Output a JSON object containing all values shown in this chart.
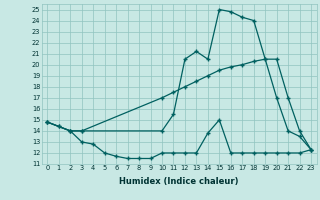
{
  "xlabel": "Humidex (Indice chaleur)",
  "xlim": [
    -0.5,
    23.5
  ],
  "ylim": [
    11,
    25.5
  ],
  "yticks": [
    11,
    12,
    13,
    14,
    15,
    16,
    17,
    18,
    19,
    20,
    21,
    22,
    23,
    24,
    25
  ],
  "xticks": [
    0,
    1,
    2,
    3,
    4,
    5,
    6,
    7,
    8,
    9,
    10,
    11,
    12,
    13,
    14,
    15,
    16,
    17,
    18,
    19,
    20,
    21,
    22,
    23
  ],
  "bg_color": "#c8e8e4",
  "grid_color": "#90c4c0",
  "line_color": "#006060",
  "curve1_x": [
    0,
    1,
    2,
    3,
    10,
    11,
    12,
    13,
    14,
    15,
    16,
    17,
    18,
    19,
    20,
    21,
    22,
    23
  ],
  "curve1_y": [
    14.8,
    14.4,
    14.0,
    14.0,
    14.0,
    15.5,
    20.5,
    21.2,
    20.5,
    25.0,
    24.8,
    24.3,
    24.0,
    20.5,
    17.0,
    14.0,
    13.5,
    12.3
  ],
  "curve2_x": [
    0,
    1,
    2,
    3,
    4,
    5,
    6,
    7,
    8,
    9,
    10,
    11,
    12,
    13,
    14,
    15,
    16,
    17,
    18,
    19,
    20,
    21,
    22,
    23
  ],
  "curve2_y": [
    14.8,
    14.4,
    14.0,
    13.0,
    12.8,
    12.0,
    11.7,
    11.5,
    11.5,
    11.5,
    12.0,
    12.0,
    12.0,
    12.0,
    13.8,
    15.0,
    12.0,
    12.0,
    12.0,
    12.0,
    12.0,
    12.0,
    12.0,
    12.3
  ],
  "curve3_x": [
    0,
    2,
    3,
    10,
    11,
    12,
    13,
    14,
    15,
    16,
    17,
    18,
    19,
    20,
    21,
    22,
    23
  ],
  "curve3_y": [
    14.8,
    14.0,
    14.0,
    17.0,
    17.5,
    18.0,
    18.5,
    19.0,
    19.5,
    19.8,
    20.0,
    20.3,
    20.5,
    20.5,
    17.0,
    14.0,
    12.3
  ]
}
